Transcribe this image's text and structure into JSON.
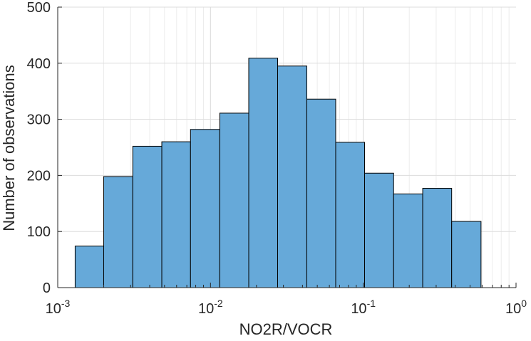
{
  "chart_data": {
    "type": "bar",
    "subtype": "histogram",
    "xscale": "log",
    "xlabel": "NO2R/VOCR",
    "ylabel": "Number of observations",
    "xlim": [
      0.001,
      1
    ],
    "ylim": [
      0,
      500
    ],
    "grid": true,
    "bar_color": "#66a9d9",
    "bar_edge_color": "#000000",
    "bin_edges": [
      0.0013,
      0.002,
      0.0031,
      0.0048,
      0.0074,
      0.0115,
      0.0178,
      0.0275,
      0.0427,
      0.066,
      0.102,
      0.158,
      0.245,
      0.379,
      0.59
    ],
    "bin_right_edge": 0.79,
    "values": [
      74,
      198,
      252,
      260,
      282,
      311,
      409,
      395,
      336,
      259,
      204,
      167,
      177,
      118
    ],
    "x_ticks": [
      {
        "base": "10",
        "exp": "-3",
        "value": 0.001
      },
      {
        "base": "10",
        "exp": "-2",
        "value": 0.01
      },
      {
        "base": "10",
        "exp": "-1",
        "value": 0.1
      },
      {
        "base": "10",
        "exp": "0",
        "value": 1
      }
    ],
    "y_ticks": [
      "0",
      "100",
      "200",
      "300",
      "400",
      "500"
    ]
  }
}
